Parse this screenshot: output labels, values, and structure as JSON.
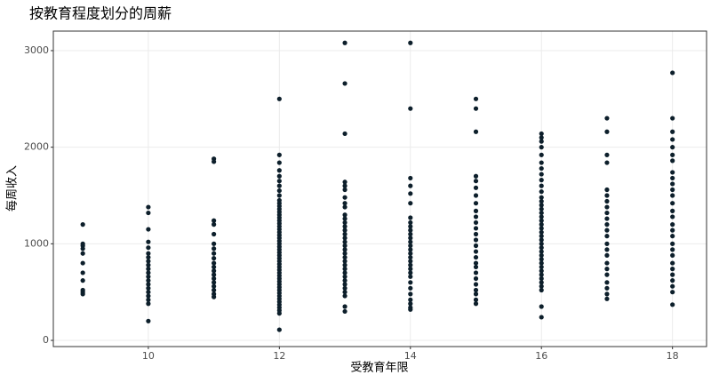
{
  "chart_data": {
    "type": "scatter",
    "title": "按教育程度划分的周薪",
    "x_label": "受教育年限",
    "y_label": "每周收入",
    "color": "#0d1f2b",
    "grid": true,
    "xlim": [
      8.55,
      18.52
    ],
    "ylim": [
      -64,
      3202
    ],
    "xticks": [
      10,
      12,
      14,
      16,
      18
    ],
    "yticks": [
      0,
      1000,
      2000,
      3000
    ],
    "x": [
      9,
      10,
      11,
      12,
      13,
      14,
      15,
      16,
      17,
      18
    ],
    "values": [
      [
        1200,
        1000,
        980,
        950,
        900,
        800,
        700,
        620,
        520,
        500,
        480
      ],
      [
        1380,
        1320,
        1150,
        1020,
        960,
        900,
        860,
        820,
        780,
        740,
        700,
        660,
        620,
        580,
        540,
        500,
        460,
        420,
        380,
        200
      ],
      [
        1880,
        1850,
        1240,
        1200,
        1100,
        1000,
        950,
        900,
        850,
        800,
        760,
        720,
        680,
        640,
        600,
        560,
        520,
        480,
        450
      ],
      [
        2500,
        1920,
        1840,
        1760,
        1700,
        1650,
        1600,
        1550,
        1500,
        1450,
        1420,
        1390,
        1360,
        1330,
        1300,
        1270,
        1240,
        1210,
        1180,
        1150,
        1120,
        1090,
        1060,
        1030,
        1000,
        970,
        940,
        910,
        880,
        850,
        820,
        790,
        760,
        730,
        700,
        670,
        640,
        610,
        580,
        550,
        520,
        490,
        460,
        430,
        400,
        370,
        340,
        310,
        280,
        110
      ],
      [
        3080,
        2660,
        2140,
        1640,
        1600,
        1560,
        1480,
        1420,
        1380,
        1300,
        1260,
        1220,
        1180,
        1140,
        1100,
        1060,
        1020,
        980,
        940,
        900,
        860,
        820,
        780,
        740,
        700,
        660,
        620,
        580,
        540,
        500,
        460,
        350,
        300
      ],
      [
        3080,
        2400,
        1680,
        1600,
        1520,
        1420,
        1270,
        1220,
        1180,
        1140,
        1100,
        1060,
        1020,
        980,
        940,
        900,
        860,
        820,
        780,
        740,
        700,
        660,
        600,
        540,
        480,
        420,
        380,
        340,
        320
      ],
      [
        2500,
        2400,
        2160,
        1700,
        1650,
        1580,
        1500,
        1420,
        1340,
        1280,
        1220,
        1160,
        1100,
        1040,
        980,
        920,
        860,
        800,
        760,
        700,
        640,
        580,
        520,
        480,
        420,
        380
      ],
      [
        2140,
        2100,
        2060,
        2000,
        1920,
        1840,
        1780,
        1720,
        1660,
        1600,
        1540,
        1480,
        1440,
        1400,
        1360,
        1320,
        1280,
        1240,
        1200,
        1160,
        1120,
        1080,
        1040,
        1000,
        960,
        920,
        880,
        840,
        800,
        760,
        720,
        680,
        640,
        600,
        560,
        520,
        350,
        240
      ],
      [
        2300,
        2160,
        1920,
        1840,
        1560,
        1500,
        1440,
        1380,
        1320,
        1260,
        1200,
        1140,
        1080,
        1000,
        940,
        880,
        800,
        740,
        680,
        600,
        540,
        480,
        430
      ],
      [
        2770,
        2300,
        2160,
        2080,
        2000,
        1920,
        1860,
        1740,
        1680,
        1620,
        1560,
        1500,
        1420,
        1340,
        1280,
        1200,
        1140,
        1080,
        1000,
        940,
        880,
        800,
        740,
        680,
        620,
        560,
        500,
        370
      ]
    ]
  }
}
